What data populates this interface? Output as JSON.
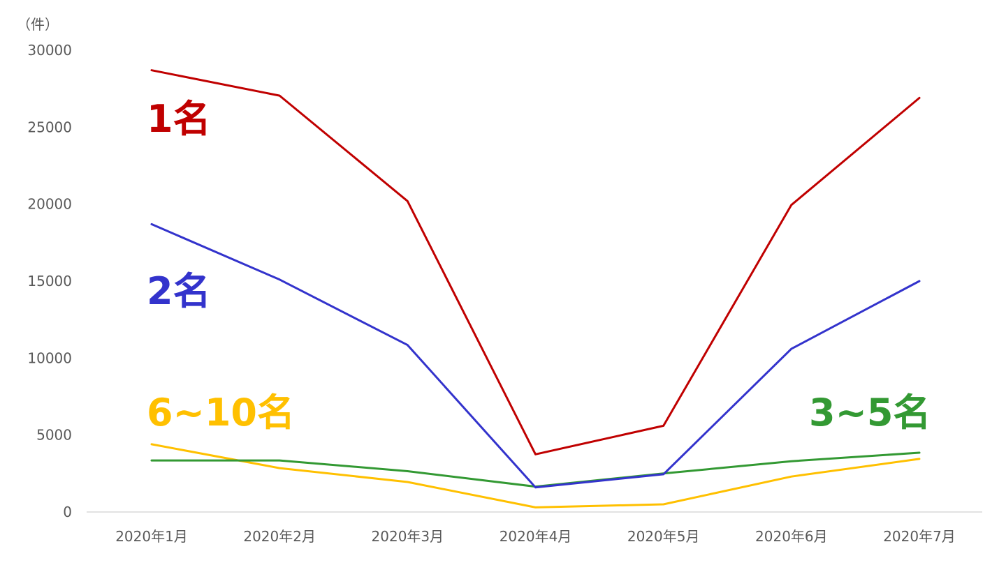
{
  "chart_data": {
    "type": "line",
    "unit_label": "（件）",
    "categories": [
      "2020年1月",
      "2020年2月",
      "2020年3月",
      "2020年4月",
      "2020年5月",
      "2020年6月",
      "2020年7月"
    ],
    "ylim": [
      0,
      30000
    ],
    "yticks": [
      "0",
      "5000",
      "10000",
      "15000",
      "20000",
      "25000",
      "30000"
    ],
    "grid": false,
    "series": [
      {
        "name": "1名",
        "color": "#C00000",
        "values": [
          28700,
          27050,
          20200,
          3750,
          5600,
          19950,
          26900
        ]
      },
      {
        "name": "2名",
        "color": "#3333CC",
        "values": [
          18700,
          15100,
          10850,
          1600,
          2450,
          10600,
          15000
        ]
      },
      {
        "name": "3~5名",
        "color": "#339933",
        "values": [
          3350,
          3350,
          2650,
          1650,
          2500,
          3300,
          3850
        ]
      },
      {
        "name": "6~10名",
        "color": "#FFC000",
        "values": [
          4400,
          2850,
          1950,
          300,
          500,
          2300,
          3450
        ]
      }
    ]
  }
}
